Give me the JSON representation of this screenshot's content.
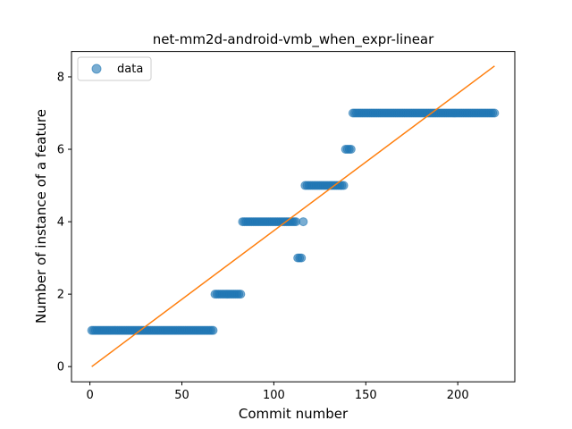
{
  "chart_data": {
    "type": "scatter",
    "title": "net-mm2d-android-vmb_when_expr-linear",
    "xlabel": "Commit number",
    "ylabel": "Number of instance of a feature",
    "xlim": [
      -10,
      231
    ],
    "ylim": [
      -0.42,
      8.7
    ],
    "xticks": [
      0,
      50,
      100,
      150,
      200
    ],
    "yticks": [
      0,
      2,
      4,
      6,
      8
    ],
    "grid": false,
    "legend": {
      "placement": "top-left",
      "entries": [
        "data"
      ]
    },
    "series": [
      {
        "name": "data",
        "kind": "points",
        "color": "#1f77b4",
        "opacity": 0.6,
        "segments": [
          {
            "x_from": 1,
            "x_to": 67,
            "y": 1
          },
          {
            "x_from": 68,
            "x_to": 82,
            "y": 2
          },
          {
            "x_from": 83,
            "x_to": 112,
            "y": 4
          },
          {
            "x_from": 113,
            "x_to": 115,
            "y": 3
          },
          {
            "x_from": 116,
            "x_to": 116,
            "y": 4
          },
          {
            "x_from": 117,
            "x_to": 138,
            "y": 5
          },
          {
            "x_from": 139,
            "x_to": 142,
            "y": 6
          },
          {
            "x_from": 143,
            "x_to": 220,
            "y": 7
          }
        ]
      },
      {
        "name": "",
        "kind": "line",
        "color": "#ff7f0e",
        "points": [
          [
            1,
            0.0
          ],
          [
            220,
            8.3
          ]
        ]
      }
    ]
  }
}
